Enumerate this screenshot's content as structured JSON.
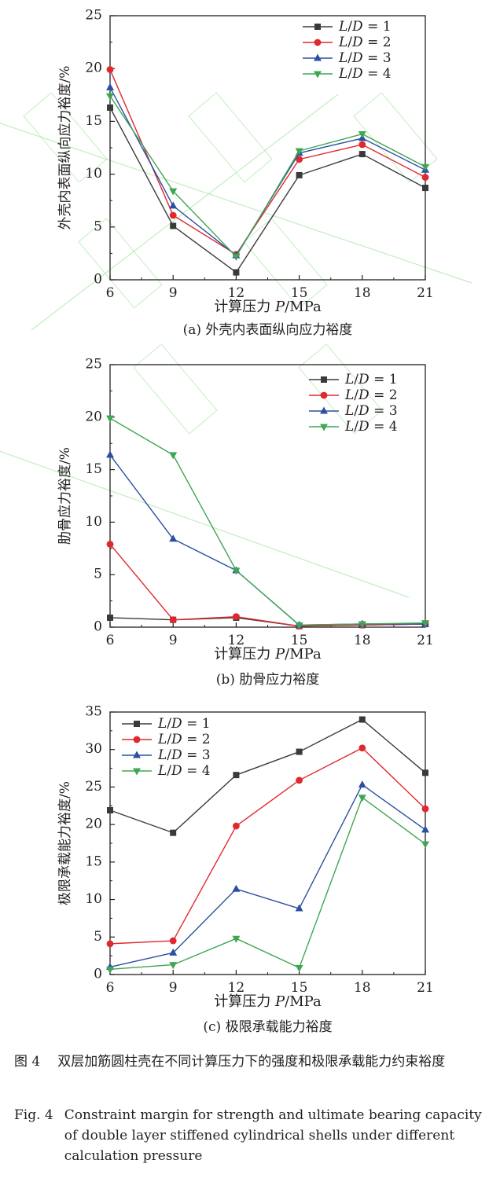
{
  "chart_data": [
    {
      "type": "line",
      "subtitle": "(a) 外壳内表面纵向应力裕度",
      "xlabel": "计算压力 P/MPa",
      "ylabel": "外壳内表面纵向应力裕度/%",
      "x": [
        6,
        9,
        12,
        15,
        18,
        21
      ],
      "xlim": [
        6,
        21
      ],
      "ylim": [
        0,
        25
      ],
      "yticks": [
        0,
        5,
        10,
        15,
        20,
        25
      ],
      "legend_position": "top-right",
      "series": [
        {
          "name": "L/D = 1",
          "values": [
            16.3,
            5.1,
            0.7,
            9.9,
            11.9,
            8.7
          ]
        },
        {
          "name": "L/D = 2",
          "values": [
            19.9,
            6.1,
            2.4,
            11.4,
            12.8,
            9.7
          ]
        },
        {
          "name": "L/D = 3",
          "values": [
            18.2,
            7.0,
            2.3,
            12.0,
            13.4,
            10.4
          ]
        },
        {
          "name": "L/D = 4",
          "values": [
            17.4,
            8.4,
            2.2,
            12.2,
            13.8,
            10.7
          ]
        }
      ]
    },
    {
      "type": "line",
      "subtitle": "(b) 肋骨应力裕度",
      "xlabel": "计算压力 P/MPa",
      "ylabel": "肋骨应力裕度/%",
      "x": [
        6,
        9,
        12,
        15,
        18,
        21
      ],
      "xlim": [
        6,
        21
      ],
      "ylim": [
        0,
        25
      ],
      "yticks": [
        0,
        5,
        10,
        15,
        20,
        25
      ],
      "legend_position": "top-right",
      "series": [
        {
          "name": "L/D = 1",
          "values": [
            0.9,
            0.7,
            0.9,
            0.1,
            0.2,
            0.3
          ]
        },
        {
          "name": "L/D = 2",
          "values": [
            7.9,
            0.7,
            1.0,
            0.1,
            0.2,
            0.3
          ]
        },
        {
          "name": "L/D = 3",
          "values": [
            16.4,
            8.4,
            5.4,
            0.2,
            0.3,
            0.3
          ]
        },
        {
          "name": "L/D = 4",
          "values": [
            19.9,
            16.4,
            5.4,
            0.2,
            0.3,
            0.4
          ]
        }
      ]
    },
    {
      "type": "line",
      "subtitle": "(c) 极限承载能力裕度",
      "xlabel": "计算压力 P/MPa",
      "ylabel": "极限承载能力裕度/%",
      "x": [
        6,
        9,
        12,
        15,
        18,
        21
      ],
      "xlim": [
        6,
        21
      ],
      "ylim": [
        0,
        35
      ],
      "yticks": [
        0,
        5,
        10,
        15,
        20,
        25,
        30,
        35
      ],
      "legend_position": "top-left",
      "series": [
        {
          "name": "L/D = 1",
          "values": [
            21.9,
            18.9,
            26.6,
            29.7,
            34.0,
            26.9
          ]
        },
        {
          "name": "L/D = 2",
          "values": [
            4.1,
            4.5,
            19.8,
            25.9,
            30.2,
            22.1
          ]
        },
        {
          "name": "L/D = 3",
          "values": [
            1.0,
            2.9,
            11.4,
            8.8,
            25.3,
            19.3
          ]
        },
        {
          "name": "L/D = 4",
          "values": [
            0.7,
            1.3,
            4.8,
            0.9,
            23.6,
            17.4
          ]
        }
      ]
    }
  ],
  "series_style": [
    {
      "color": "#3a3a3a",
      "marker": "square"
    },
    {
      "color": "#e0282f",
      "marker": "circle"
    },
    {
      "color": "#2c4fa3",
      "marker": "triangle-up"
    },
    {
      "color": "#3fa653",
      "marker": "triangle-down"
    }
  ],
  "watermark_color": "#8ee08a",
  "caption": {
    "cn_label": "图 4",
    "cn_text": "双层加筋圆柱壳在不同计算压力下的强度和极限承载能力约束裕度",
    "en_label": "Fig. 4",
    "en_text": "Constraint margin for strength and ultimate bearing capacity of double layer stiffened cylindrical shells under different calculation pressure"
  }
}
